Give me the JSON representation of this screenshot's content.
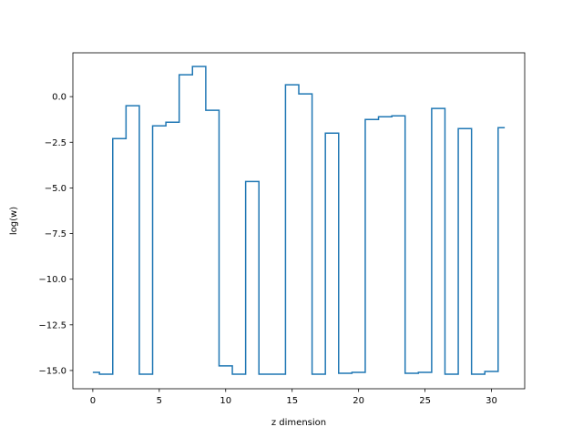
{
  "chart_data": {
    "type": "line",
    "drawstyle": "steps-mid",
    "title": "",
    "xlabel": "z dimension",
    "ylabel": "log(w)",
    "xlim": [
      -1.5,
      32.5
    ],
    "ylim": [
      -16.0,
      2.4
    ],
    "xticks": [
      0,
      5,
      10,
      15,
      20,
      25,
      30
    ],
    "xtick_labels": [
      "0",
      "5",
      "10",
      "15",
      "20",
      "25",
      "30"
    ],
    "yticks": [
      0.0,
      -2.5,
      -5.0,
      -7.5,
      -10.0,
      -12.5,
      -15.0
    ],
    "ytick_labels": [
      "0.0",
      "−2.5",
      "−5.0",
      "−7.5",
      "−10.0",
      "−12.5",
      "−15.0"
    ],
    "grid": false,
    "legend": "none",
    "series": [
      {
        "color": "#1f77b4",
        "x": [
          0,
          1,
          2,
          3,
          4,
          5,
          6,
          7,
          8,
          9,
          10,
          11,
          12,
          13,
          14,
          15,
          16,
          17,
          18,
          19,
          20,
          21,
          22,
          23,
          24,
          25,
          26,
          27,
          28,
          29,
          30,
          31
        ],
        "y": [
          -15.1,
          -15.2,
          -2.3,
          -0.5,
          -15.2,
          -1.6,
          -1.4,
          1.2,
          1.65,
          -0.75,
          -14.75,
          -15.2,
          -4.65,
          -15.2,
          -15.2,
          0.65,
          0.15,
          -15.2,
          -2.0,
          -15.15,
          -15.1,
          -1.25,
          -1.1,
          -1.05,
          -15.15,
          -15.1,
          -0.65,
          -15.2,
          -1.75,
          -15.2,
          -15.05,
          -1.7
        ]
      }
    ]
  }
}
